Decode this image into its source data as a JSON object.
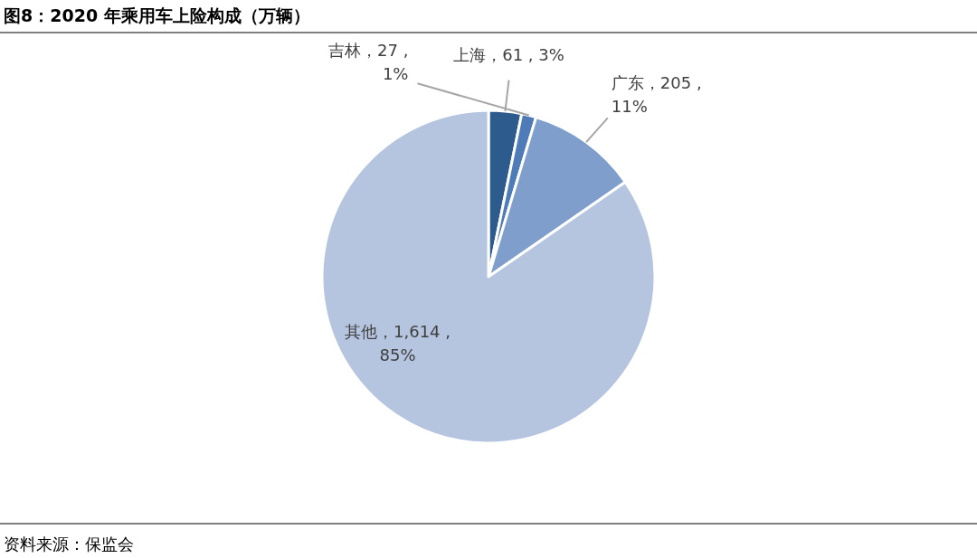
{
  "chart_data": {
    "type": "pie",
    "title": "图8：2020 年乘用车上险构成（万辆）",
    "categories": [
      "上海",
      "吉林",
      "广东",
      "其他"
    ],
    "values": [
      61,
      27,
      205,
      1614
    ],
    "colors": [
      "#2e5b8e",
      "#4f7bb8",
      "#7f9ecc",
      "#b5c4df"
    ],
    "value_labels": [
      "，61 , 3%",
      "，27 ,\n1%",
      "，205 ,\n11%",
      "，1,614 ,\n85%"
    ],
    "annotations": [
      "资料来源：保监会"
    ]
  }
}
